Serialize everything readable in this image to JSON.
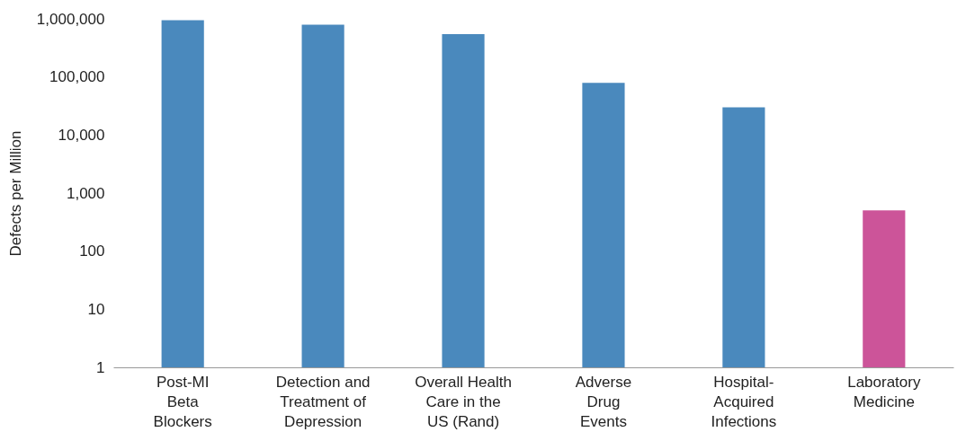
{
  "chart_data": {
    "type": "bar",
    "ylabel": "Defects per Million",
    "categories": [
      "Post-MI\nBeta\nBlockers",
      "Detection and\nTreatment of\nDepression",
      "Overall Health\nCare in the\nUS (Rand)",
      "Adverse\nDrug\nEvents",
      "Hospital-\nAcquired\nInfections",
      "Laboratory\nMedicine"
    ],
    "values": [
      950000,
      790000,
      545000,
      79000,
      30000,
      505
    ],
    "colors": [
      "#4a89bd",
      "#4a89bd",
      "#4a89bd",
      "#4a89bd",
      "#4a89bd",
      "#cc5499"
    ],
    "log": "y",
    "ylim": [
      1,
      1000000
    ],
    "yticks": [
      {
        "value": 1,
        "label": "1"
      },
      {
        "value": 10,
        "label": "10"
      },
      {
        "value": 100,
        "label": "100"
      },
      {
        "value": 1000,
        "label": "1,000"
      },
      {
        "value": 10000,
        "label": "10,000"
      },
      {
        "value": 100000,
        "label": "100,000"
      },
      {
        "value": 1000000,
        "label": "1,000,000"
      }
    ],
    "grid": false,
    "legend": false
  }
}
